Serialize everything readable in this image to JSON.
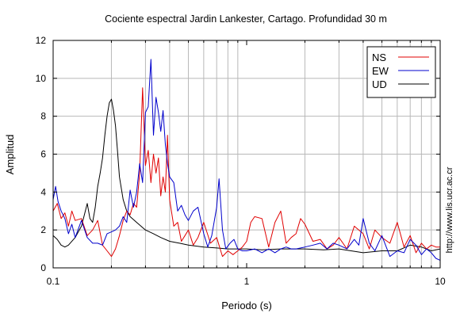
{
  "chart_data": {
    "type": "line",
    "title": "Cociente espectral Jardin Lankester, Cartago. Profundidad 30 m",
    "xlabel": "Periodo (s)",
    "ylabel": "Amplitud",
    "xscale": "log",
    "xlim": [
      0.1,
      10
    ],
    "ylim": [
      0,
      12
    ],
    "x_tick_labels": [
      "0.1",
      "1",
      "10"
    ],
    "x_tick_values": [
      0.1,
      1,
      10
    ],
    "y_ticks": [
      0,
      2,
      4,
      6,
      8,
      10,
      12
    ],
    "grid": "vertical log minor lines and horizontal major lines",
    "legend_position": "top-right",
    "watermark": "http://www.lis.ucr.ac.cr",
    "series": [
      {
        "name": "NS",
        "color": "#e00000",
        "x": [
          0.1,
          0.105,
          0.11,
          0.115,
          0.12,
          0.125,
          0.13,
          0.14,
          0.15,
          0.16,
          0.17,
          0.18,
          0.19,
          0.2,
          0.21,
          0.22,
          0.23,
          0.24,
          0.25,
          0.26,
          0.27,
          0.28,
          0.29,
          0.3,
          0.31,
          0.32,
          0.33,
          0.34,
          0.35,
          0.36,
          0.37,
          0.38,
          0.39,
          0.4,
          0.42,
          0.44,
          0.46,
          0.48,
          0.5,
          0.53,
          0.56,
          0.6,
          0.65,
          0.7,
          0.75,
          0.8,
          0.85,
          0.9,
          0.95,
          1.0,
          1.05,
          1.1,
          1.2,
          1.3,
          1.4,
          1.5,
          1.6,
          1.7,
          1.8,
          1.9,
          2.0,
          2.2,
          2.4,
          2.6,
          2.8,
          3.0,
          3.3,
          3.6,
          4.0,
          4.3,
          4.6,
          5.0,
          5.5,
          6.0,
          6.5,
          7.0,
          7.5,
          8.0,
          8.5,
          9.0,
          9.5,
          10.0
        ],
        "values": [
          3.0,
          3.4,
          2.6,
          2.9,
          2.2,
          3.0,
          2.5,
          2.6,
          1.7,
          2.0,
          2.5,
          1.2,
          0.9,
          0.6,
          1.0,
          1.7,
          2.5,
          3.0,
          2.8,
          3.4,
          3.2,
          5.0,
          9.5,
          5.4,
          6.2,
          4.5,
          6.0,
          5.0,
          5.8,
          3.8,
          4.8,
          4.0,
          7.0,
          3.6,
          2.2,
          2.4,
          1.4,
          1.7,
          2.0,
          1.2,
          1.6,
          2.4,
          1.3,
          1.6,
          0.6,
          0.9,
          0.7,
          0.9,
          1.1,
          1.4,
          2.4,
          2.7,
          2.6,
          1.1,
          2.4,
          3.0,
          1.3,
          1.6,
          1.8,
          2.6,
          2.3,
          1.4,
          1.5,
          1.0,
          1.2,
          1.6,
          1.0,
          2.2,
          1.8,
          1.0,
          2.0,
          1.6,
          1.3,
          2.4,
          1.1,
          1.7,
          0.8,
          1.3,
          1.0,
          1.2,
          1.1,
          1.1
        ]
      },
      {
        "name": "EW",
        "color": "#0000cc",
        "x": [
          0.1,
          0.103,
          0.106,
          0.11,
          0.115,
          0.12,
          0.125,
          0.13,
          0.14,
          0.15,
          0.16,
          0.17,
          0.18,
          0.19,
          0.2,
          0.21,
          0.22,
          0.23,
          0.24,
          0.25,
          0.26,
          0.27,
          0.28,
          0.29,
          0.3,
          0.31,
          0.32,
          0.33,
          0.34,
          0.35,
          0.36,
          0.37,
          0.38,
          0.39,
          0.4,
          0.42,
          0.44,
          0.46,
          0.48,
          0.5,
          0.53,
          0.56,
          0.6,
          0.63,
          0.66,
          0.7,
          0.72,
          0.75,
          0.78,
          0.82,
          0.86,
          0.9,
          0.95,
          1.0,
          1.1,
          1.2,
          1.3,
          1.4,
          1.5,
          1.6,
          1.7,
          1.8,
          2.0,
          2.2,
          2.4,
          2.6,
          2.8,
          3.0,
          3.3,
          3.6,
          3.8,
          4.0,
          4.3,
          4.6,
          5.0,
          5.5,
          6.0,
          6.5,
          7.0,
          7.5,
          8.0,
          8.5,
          9.0,
          9.5,
          10.0
        ],
        "values": [
          3.6,
          4.3,
          3.5,
          3.0,
          2.6,
          1.8,
          2.3,
          1.6,
          2.5,
          1.6,
          1.3,
          1.3,
          1.2,
          1.8,
          1.9,
          2.0,
          2.2,
          2.7,
          2.4,
          4.1,
          3.2,
          4.0,
          5.5,
          4.5,
          8.2,
          8.5,
          11.0,
          7.0,
          9.0,
          8.2,
          7.2,
          8.3,
          6.5,
          5.5,
          4.8,
          4.5,
          3.0,
          3.3,
          2.8,
          2.5,
          3.0,
          3.2,
          1.8,
          1.1,
          1.7,
          3.2,
          4.7,
          2.0,
          1.0,
          1.3,
          1.5,
          1.0,
          0.9,
          0.9,
          1.0,
          0.8,
          1.0,
          0.8,
          1.0,
          1.1,
          1.0,
          1.0,
          1.1,
          1.2,
          1.3,
          1.0,
          1.3,
          1.2,
          1.0,
          1.5,
          1.2,
          2.6,
          1.3,
          0.9,
          1.7,
          0.6,
          0.9,
          0.8,
          1.5,
          1.2,
          0.7,
          1.0,
          0.8,
          0.5,
          0.4
        ]
      },
      {
        "name": "UD",
        "color": "#000000",
        "x": [
          0.1,
          0.105,
          0.11,
          0.115,
          0.12,
          0.13,
          0.14,
          0.145,
          0.15,
          0.155,
          0.16,
          0.165,
          0.17,
          0.175,
          0.18,
          0.185,
          0.19,
          0.195,
          0.2,
          0.205,
          0.21,
          0.215,
          0.22,
          0.23,
          0.24,
          0.25,
          0.27,
          0.3,
          0.33,
          0.36,
          0.4,
          0.45,
          0.5,
          0.6,
          0.7,
          0.8,
          1.0,
          1.2,
          1.5,
          2.0,
          2.5,
          3.0,
          4.0,
          5.0,
          6.0,
          7.0,
          8.0,
          9.0,
          10.0
        ],
        "values": [
          1.7,
          1.5,
          1.2,
          1.1,
          1.2,
          1.6,
          2.2,
          2.8,
          3.4,
          2.6,
          2.4,
          3.2,
          4.3,
          5.0,
          5.8,
          7.0,
          8.0,
          8.7,
          8.9,
          8.3,
          7.5,
          6.2,
          4.8,
          3.6,
          3.0,
          2.7,
          2.4,
          2.0,
          1.8,
          1.6,
          1.4,
          1.3,
          1.2,
          1.1,
          1.05,
          1.0,
          1.0,
          0.95,
          1.0,
          1.0,
          0.95,
          1.0,
          0.8,
          0.9,
          0.9,
          1.2,
          1.1,
          0.9,
          1.0
        ]
      }
    ]
  }
}
